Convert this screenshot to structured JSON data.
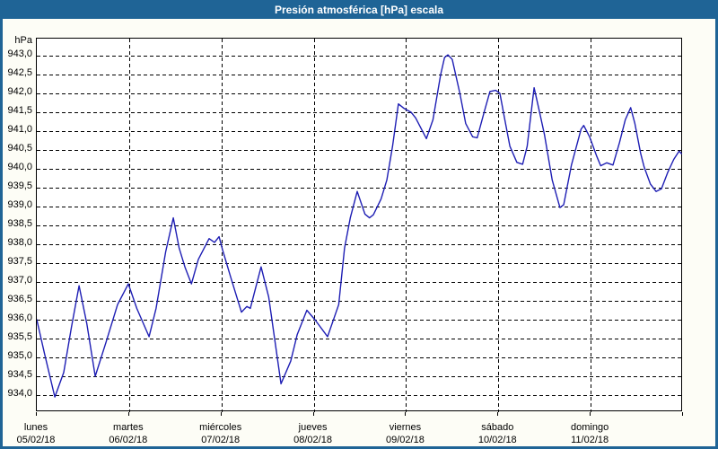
{
  "window": {
    "title": "Presión atmosférica [hPa] escala"
  },
  "chart_data": {
    "type": "line",
    "title": "Presión atmosférica [hPa] escala",
    "grid": "dashed",
    "legend": "none",
    "line_color": "#1e1eb4",
    "frame_color": "#1f6496",
    "y_axis": {
      "unit": "hPa",
      "min_value": 933.548,
      "max_value": 943.452,
      "ticks": [
        {
          "value": 943.0,
          "label": "943,0"
        },
        {
          "value": 942.5,
          "label": "942,5"
        },
        {
          "value": 942.0,
          "label": "942,0"
        },
        {
          "value": 941.5,
          "label": "941,5"
        },
        {
          "value": 941.0,
          "label": "941,0"
        },
        {
          "value": 940.5,
          "label": "940,5"
        },
        {
          "value": 940.0,
          "label": "940,0"
        },
        {
          "value": 939.5,
          "label": "939,5"
        },
        {
          "value": 939.0,
          "label": "939,0"
        },
        {
          "value": 938.5,
          "label": "938,5"
        },
        {
          "value": 938.0,
          "label": "938,0"
        },
        {
          "value": 937.5,
          "label": "937,5"
        },
        {
          "value": 937.0,
          "label": "937,0"
        },
        {
          "value": 936.5,
          "label": "936,5"
        },
        {
          "value": 936.0,
          "label": "936,0"
        },
        {
          "value": 935.5,
          "label": "935,5"
        },
        {
          "value": 935.0,
          "label": "935,0"
        },
        {
          "value": 934.5,
          "label": "934,5"
        },
        {
          "value": 934.0,
          "label": "934,0"
        }
      ]
    },
    "x_axis": {
      "total_hours": 168,
      "days": [
        {
          "name": "lunes",
          "date": "05/02/18"
        },
        {
          "name": "martes",
          "date": "06/02/18"
        },
        {
          "name": "miércoles",
          "date": "07/02/18"
        },
        {
          "name": "jueves",
          "date": "08/02/18"
        },
        {
          "name": "viernes",
          "date": "09/02/18"
        },
        {
          "name": "sábado",
          "date": "10/02/18"
        },
        {
          "name": "domingo",
          "date": "11/02/18"
        }
      ]
    },
    "series": [
      {
        "name": "Presión atmosférica",
        "color": "#1e1eb4",
        "points": [
          [
            0,
            936.0
          ],
          [
            2,
            935.1
          ],
          [
            4.7,
            933.95
          ],
          [
            7,
            934.6
          ],
          [
            9,
            935.8
          ],
          [
            11,
            936.9
          ],
          [
            13,
            935.9
          ],
          [
            15.2,
            934.5
          ],
          [
            18,
            935.4
          ],
          [
            21,
            936.4
          ],
          [
            23.8,
            936.95
          ],
          [
            26,
            936.3
          ],
          [
            29.2,
            935.55
          ],
          [
            31,
            936.3
          ],
          [
            33.5,
            937.8
          ],
          [
            35.5,
            938.7
          ],
          [
            37,
            937.9
          ],
          [
            38.5,
            937.4
          ],
          [
            40.2,
            936.95
          ],
          [
            42,
            937.6
          ],
          [
            44.8,
            938.15
          ],
          [
            46.2,
            938.05
          ],
          [
            47.4,
            938.2
          ],
          [
            48.3,
            937.85
          ],
          [
            50.5,
            937.1
          ],
          [
            53.2,
            936.2
          ],
          [
            54.6,
            936.35
          ],
          [
            55.5,
            936.3
          ],
          [
            58.3,
            937.4
          ],
          [
            60.3,
            936.6
          ],
          [
            63.5,
            934.3
          ],
          [
            66,
            934.9
          ],
          [
            67.7,
            935.6
          ],
          [
            70.2,
            936.25
          ],
          [
            72.3,
            936.0
          ],
          [
            75.6,
            935.55
          ],
          [
            78.5,
            936.4
          ],
          [
            80,
            937.9
          ],
          [
            81.5,
            938.7
          ],
          [
            83.3,
            939.4
          ],
          [
            85.3,
            938.8
          ],
          [
            86.5,
            938.7
          ],
          [
            87.5,
            938.78
          ],
          [
            89.5,
            939.2
          ],
          [
            91,
            939.7
          ],
          [
            92.5,
            940.6
          ],
          [
            94,
            941.72
          ],
          [
            95.5,
            941.6
          ],
          [
            97.3,
            941.5
          ],
          [
            98.5,
            941.35
          ],
          [
            101.3,
            940.8
          ],
          [
            103,
            941.3
          ],
          [
            105,
            942.5
          ],
          [
            106,
            942.95
          ],
          [
            106.9,
            943.02
          ],
          [
            108,
            942.9
          ],
          [
            110,
            942.0
          ],
          [
            111.5,
            941.2
          ],
          [
            113.3,
            940.85
          ],
          [
            114.5,
            940.82
          ],
          [
            116.3,
            941.5
          ],
          [
            117.8,
            942.05
          ],
          [
            119.3,
            942.08
          ],
          [
            120.4,
            942.0
          ],
          [
            121.5,
            941.4
          ],
          [
            123,
            940.6
          ],
          [
            124.8,
            940.17
          ],
          [
            126.3,
            940.12
          ],
          [
            127.5,
            940.6
          ],
          [
            129.3,
            942.15
          ],
          [
            130.5,
            941.6
          ],
          [
            132,
            940.9
          ],
          [
            134,
            939.7
          ],
          [
            136,
            938.97
          ],
          [
            137,
            939.05
          ],
          [
            139,
            940.1
          ],
          [
            141.5,
            941.05
          ],
          [
            142.2,
            941.15
          ],
          [
            143.7,
            940.85
          ],
          [
            145.5,
            940.35
          ],
          [
            146.6,
            940.08
          ],
          [
            148.2,
            940.16
          ],
          [
            149.8,
            940.1
          ],
          [
            151.5,
            940.7
          ],
          [
            153,
            941.3
          ],
          [
            154.4,
            941.62
          ],
          [
            155.5,
            941.2
          ],
          [
            157,
            940.4
          ],
          [
            157.9,
            940.05
          ],
          [
            159.5,
            939.6
          ],
          [
            161,
            939.4
          ],
          [
            162.4,
            939.47
          ],
          [
            164,
            939.9
          ],
          [
            165.6,
            940.25
          ],
          [
            167,
            940.47
          ],
          [
            167.6,
            940.4
          ]
        ]
      }
    ]
  }
}
